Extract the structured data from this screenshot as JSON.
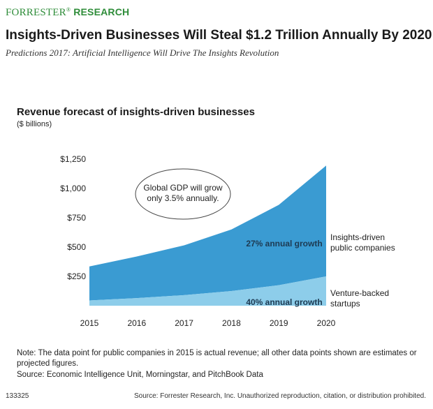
{
  "brand": {
    "part1": "FORRESTER",
    "reg": "®",
    "part2": "RESEARCH"
  },
  "title": "Insights-Driven Businesses Will Steal $1.2 Trillion Annually By 2020",
  "subtitle": "Predictions 2017: Artificial Intelligence Will Drive The Insights Revolution",
  "chart_data": {
    "type": "area",
    "title": "Revenue forecast of insights-driven businesses",
    "ylabel": "($ billions)",
    "xlabel": "",
    "x": [
      "2015",
      "2016",
      "2017",
      "2018",
      "2019",
      "2020"
    ],
    "ylim": [
      0,
      1250
    ],
    "yticks": [
      250,
      500,
      750,
      1000,
      1250
    ],
    "ytick_labels": [
      "$250",
      "$500",
      "$750",
      "$1,000",
      "$1,250"
    ],
    "stacked": true,
    "series": [
      {
        "name": "Venture-backed startups",
        "label_lines": [
          "Venture-backed",
          "startups"
        ],
        "growth_label": "40% annual growth",
        "color": "#8dcdea",
        "values": [
          45,
          65,
          90,
          125,
          175,
          250
        ]
      },
      {
        "name": "Insights-driven public companies",
        "label_lines": [
          "Insights-driven",
          "public companies"
        ],
        "growth_label": "27% annual growth",
        "color": "#3a9bd2",
        "values": [
          290,
          355,
          425,
          525,
          685,
          945
        ]
      }
    ],
    "annotation": {
      "lines": [
        "Global GDP will grow",
        "only 3.5% annually."
      ]
    }
  },
  "note": "Note: The data point for public companies in 2015 is actual revenue; all other data points shown are estimates or projected figures.",
  "source": "Source: Economic Intelligence Unit, Morningstar, and PitchBook Data",
  "footer": {
    "id": "133325",
    "source": "Source: Forrester Research, Inc. Unauthorized reproduction, citation, or distribution prohibited."
  }
}
